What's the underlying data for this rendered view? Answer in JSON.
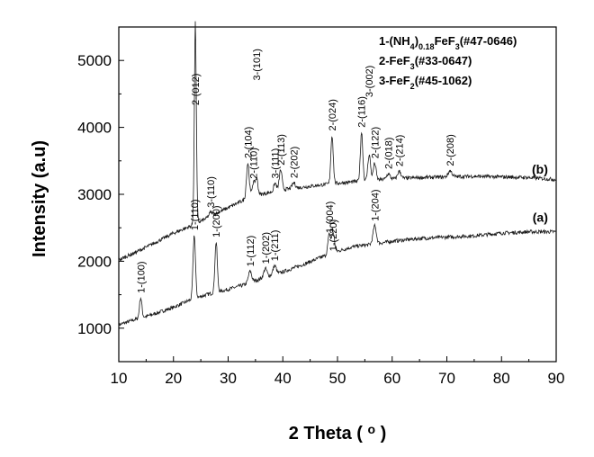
{
  "chart_data": {
    "type": "line",
    "xlabel": "2 Theta (",
    "xlabel_unit": "o",
    "xlabel_close": ")",
    "ylabel": "Intensity (a.u)",
    "xlim": [
      10,
      90
    ],
    "ylim": [
      500,
      5500
    ],
    "xticks": [
      10,
      20,
      30,
      40,
      50,
      60,
      70,
      80,
      90
    ],
    "yticks": [
      1000,
      2000,
      3000,
      4000,
      5000
    ],
    "grid": false,
    "legend": {
      "placement": "top-right",
      "entries": [
        {
          "prefix": "1-(NH",
          "sub1": "4",
          "mid1": ")",
          "sub2": "0.18",
          "mid2": "FeF",
          "sub3": "3",
          "suffix": "(#47-0646)"
        },
        {
          "prefix": "2-FeF",
          "sub1": "3",
          "suffix": "(#33-0647)"
        },
        {
          "prefix": "3-FeF",
          "sub1": "2",
          "suffix": "(#45-1062)"
        }
      ]
    },
    "series": [
      {
        "name": "(a)",
        "label_x": 88.5,
        "label_y": 2590,
        "baseline": [
          [
            10,
            1050
          ],
          [
            13,
            1130
          ],
          [
            16,
            1200
          ],
          [
            20,
            1310
          ],
          [
            23,
            1420
          ],
          [
            26,
            1500
          ],
          [
            30,
            1580
          ],
          [
            33,
            1650
          ],
          [
            36,
            1740
          ],
          [
            40,
            1840
          ],
          [
            44,
            1960
          ],
          [
            47,
            2060
          ],
          [
            50,
            2150
          ],
          [
            53,
            2220
          ],
          [
            57,
            2260
          ],
          [
            60,
            2300
          ],
          [
            65,
            2340
          ],
          [
            70,
            2360
          ],
          [
            75,
            2380
          ],
          [
            80,
            2420
          ],
          [
            85,
            2440
          ],
          [
            90,
            2440
          ]
        ],
        "peaks": [
          {
            "x": 14.0,
            "h": 300,
            "w": 0.22,
            "label": "1-(100)"
          },
          {
            "x": 23.8,
            "h": 950,
            "w": 0.22,
            "label": "1-(110)"
          },
          {
            "x": 27.8,
            "h": 750,
            "w": 0.22,
            "label": "1-(200)"
          },
          {
            "x": 34.0,
            "h": 170,
            "w": 0.3,
            "label": "1-(112)"
          },
          {
            "x": 36.8,
            "h": 130,
            "w": 0.3,
            "label": "1-(202)"
          },
          {
            "x": 38.5,
            "h": 130,
            "w": 0.3,
            "label": "1-(211)"
          },
          {
            "x": 48.5,
            "h": 300,
            "w": 0.25,
            "label": "1-(004)"
          },
          {
            "x": 49.2,
            "h": 300,
            "w": 0.25,
            "label": "1-(220)"
          },
          {
            "x": 56.8,
            "h": 270,
            "w": 0.3,
            "label": "1-(204)"
          }
        ]
      },
      {
        "name": "(b)",
        "label_x": 88.5,
        "label_y": 3310,
        "baseline": [
          [
            10,
            2020
          ],
          [
            13,
            2130
          ],
          [
            16,
            2250
          ],
          [
            20,
            2420
          ],
          [
            23,
            2520
          ],
          [
            26,
            2640
          ],
          [
            30,
            2800
          ],
          [
            33,
            2920
          ],
          [
            36,
            3000
          ],
          [
            40,
            3070
          ],
          [
            44,
            3110
          ],
          [
            48,
            3150
          ],
          [
            52,
            3180
          ],
          [
            56,
            3210
          ],
          [
            60,
            3230
          ],
          [
            65,
            3250
          ],
          [
            70,
            3260
          ],
          [
            75,
            3270
          ],
          [
            80,
            3260
          ],
          [
            85,
            3250
          ],
          [
            90,
            3220
          ]
        ],
        "peaks": [
          {
            "x": 24.0,
            "h": 3000,
            "w": 0.18,
            "label": "2-(012)"
          },
          {
            "x": 26.8,
            "h": 60,
            "w": 0.3,
            "label": "3-(110)"
          },
          {
            "x": 33.6,
            "h": 530,
            "w": 0.25,
            "label": "2-(104)"
          },
          {
            "x": 34.6,
            "h": 200,
            "w": 0.25,
            "label": "2-(110)"
          },
          {
            "x": 35.2,
            "h": 250,
            "w": 0.25,
            "label": "3-(101)"
          },
          {
            "x": 38.6,
            "h": 120,
            "w": 0.25,
            "label": "3-(111)"
          },
          {
            "x": 39.6,
            "h": 300,
            "w": 0.25,
            "label": "2-(113)"
          },
          {
            "x": 42.0,
            "h": 80,
            "w": 0.3,
            "label": "2-(202)"
          },
          {
            "x": 49.0,
            "h": 720,
            "w": 0.22,
            "label": "2-(024)"
          },
          {
            "x": 54.4,
            "h": 730,
            "w": 0.22,
            "label": "2-(116)"
          },
          {
            "x": 55.8,
            "h": 380,
            "w": 0.25,
            "label": "3-(002)"
          },
          {
            "x": 56.8,
            "h": 250,
            "w": 0.25,
            "label": "2-(122)"
          },
          {
            "x": 59.3,
            "h": 80,
            "w": 0.3,
            "label": "2-(018)"
          },
          {
            "x": 61.3,
            "h": 110,
            "w": 0.3,
            "label": "2-(214)"
          },
          {
            "x": 70.6,
            "h": 90,
            "w": 0.35,
            "label": "2-(208)"
          }
        ]
      }
    ]
  }
}
